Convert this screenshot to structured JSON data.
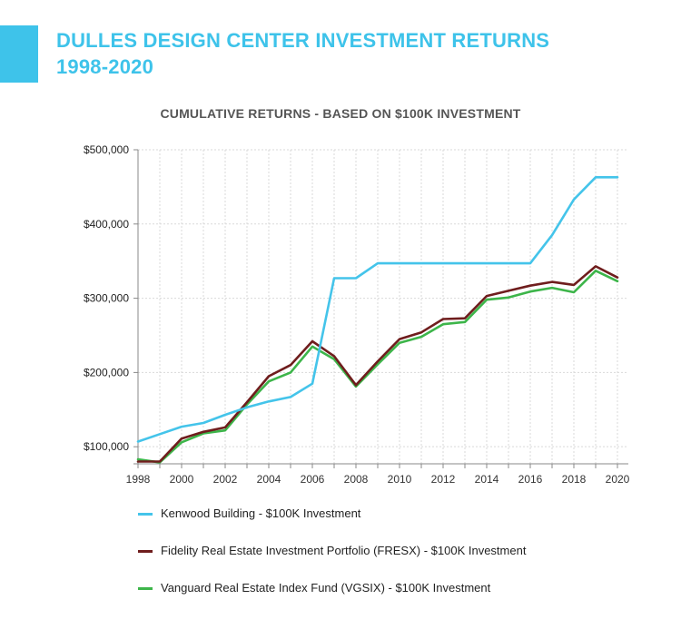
{
  "header": {
    "title_line1": "DULLES DESIGN CENTER INVESTMENT RETURNS",
    "title_line2": "1998-2020",
    "accent_color": "#3ec3ea"
  },
  "chart_data": {
    "type": "line",
    "title": "CUMULATIVE RETURNS - BASED ON $100K INVESTMENT",
    "xlabel": "",
    "ylabel": "",
    "x": [
      1998,
      1999,
      2000,
      2001,
      2002,
      2003,
      2004,
      2005,
      2006,
      2007,
      2008,
      2009,
      2010,
      2011,
      2012,
      2013,
      2014,
      2015,
      2016,
      2017,
      2018,
      2019,
      2020
    ],
    "xticks": [
      "1998",
      "2000",
      "2002",
      "2004",
      "2006",
      "2008",
      "2010",
      "2012",
      "2014",
      "2016",
      "2018",
      "2020"
    ],
    "yticks": [
      "$100,000",
      "$200,000",
      "$300,000",
      "$400,000",
      "$500,000"
    ],
    "ytick_values": [
      100000,
      200000,
      300000,
      400000,
      500000
    ],
    "xlim": [
      1998,
      2020
    ],
    "ylim": [
      77000,
      500000
    ],
    "grid": true,
    "legend_position": "bottom",
    "series": [
      {
        "name": "Kenwood Building - $100K Investment",
        "color": "#44c4ea",
        "values": [
          107000,
          117000,
          127000,
          132000,
          143000,
          153000,
          161000,
          167000,
          185000,
          327000,
          327000,
          347000,
          347000,
          347000,
          347000,
          347000,
          347000,
          347000,
          347000,
          385000,
          433000,
          463000,
          463000
        ]
      },
      {
        "name": "Fidelity Real Estate Investment Portfolio (FRESX) - $100K Investment",
        "color": "#6f1d1d",
        "values": [
          80000,
          80000,
          111000,
          120000,
          126000,
          160000,
          195000,
          210000,
          242000,
          222000,
          183000,
          215000,
          245000,
          254000,
          272000,
          273000,
          303000,
          310000,
          317000,
          322000,
          318000,
          343000,
          328000
        ]
      },
      {
        "name": "Vanguard Real Estate Index Fund (VGSIX) - $100K Investment",
        "color": "#3db54a",
        "values": [
          83000,
          79000,
          106000,
          118000,
          122000,
          157000,
          188000,
          200000,
          235000,
          218000,
          181000,
          211000,
          240000,
          248000,
          265000,
          268000,
          298000,
          301000,
          309000,
          314000,
          308000,
          337000,
          323000
        ]
      }
    ]
  }
}
